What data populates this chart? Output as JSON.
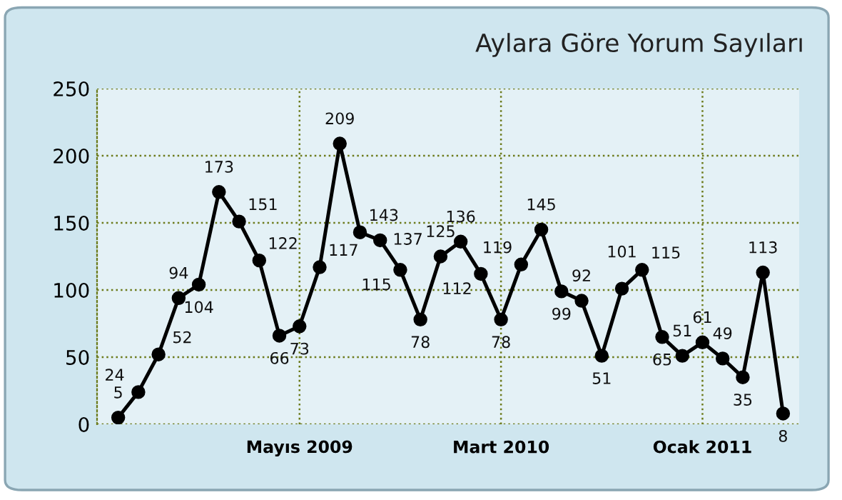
{
  "chart_data": {
    "type": "line",
    "title": "Aylara Göre Yorum Sayıları",
    "categories": [
      null,
      null,
      null,
      null,
      null,
      null,
      null,
      null,
      null,
      "Mayıs 2009",
      null,
      null,
      null,
      null,
      null,
      null,
      null,
      null,
      null,
      "Mart 2010",
      null,
      null,
      null,
      null,
      null,
      null,
      null,
      null,
      null,
      "Ocak 2011",
      null,
      null,
      null,
      null
    ],
    "series": [
      {
        "color": "#000000",
        "values": [
          5,
          24,
          52,
          94,
          104,
          173,
          151,
          122,
          66,
          73,
          117,
          209,
          143,
          137,
          115,
          78,
          125,
          136,
          112,
          78,
          119,
          145,
          99,
          92,
          51,
          101,
          115,
          65,
          51,
          61,
          49,
          35,
          113,
          8
        ]
      }
    ],
    "ylim": [
      0,
      250
    ],
    "yticks": [
      0,
      50,
      100,
      150,
      200,
      250
    ],
    "grid": true,
    "marker": "circle",
    "line_style": "solid",
    "data_labels": true,
    "legend": false
  }
}
